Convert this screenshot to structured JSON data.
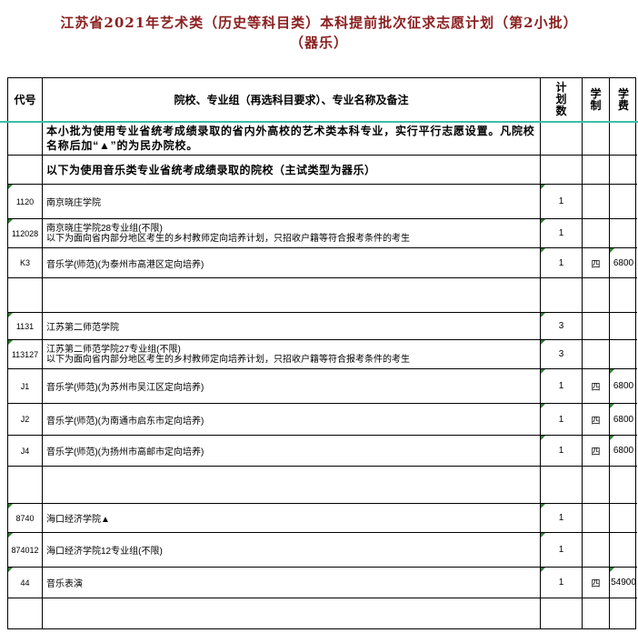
{
  "title": {
    "line1": "江苏省2021年艺术类（历史等科目类）本科提前批次征求志愿计划（第2小批）",
    "line2": "（器乐）"
  },
  "colors": {
    "title": "#8B2020",
    "freeze_line": "#3BBFA9",
    "error_triangle": "#2E7D32",
    "border": "#000000"
  },
  "table": {
    "header": {
      "code": "代号",
      "main": "院校、专业组（再选科目要求）、专业名称及备注",
      "plan": "计划数",
      "years": "学制",
      "fee": "学费"
    },
    "rows": [
      {
        "type": "note",
        "text": "本小批为使用专业省统考成绩录取的省内外高校的艺术类本科专业，实行平行志愿设置。凡院校名称后加“▲”的为民办院校。"
      },
      {
        "type": "subheader",
        "text": "以下为使用音乐类专业省统考成绩录取的院校（主试类型为器乐）"
      },
      {
        "type": "data",
        "code": "1120",
        "name": "南京晓庄学院",
        "plan": "1",
        "years": "",
        "fee": ""
      },
      {
        "type": "data",
        "code": "112028",
        "lines": [
          "南京晓庄学院28专业组(不限)",
          "以下为面向省内部分地区考生的乡村教师定向培养计划，只招收户籍等符合报考条件的考生"
        ],
        "plan": "1",
        "years": "",
        "fee": ""
      },
      {
        "type": "data",
        "code": "K3",
        "name": "音乐学(师范)(为泰州市高港区定向培养)",
        "plan": "1",
        "years": "四",
        "fee": "6800"
      },
      {
        "type": "empty"
      },
      {
        "type": "data",
        "code": "1131",
        "name": "江苏第二师范学院",
        "plan": "3",
        "years": "",
        "fee": ""
      },
      {
        "type": "data",
        "code": "113127",
        "lines": [
          "江苏第二师范学院27专业组(不限)",
          "以下为面向省内部分地区考生的乡村教师定向培养计划，只招收户籍等符合报考条件的考生"
        ],
        "plan": "3",
        "years": "",
        "fee": ""
      },
      {
        "type": "data",
        "code": "J1",
        "name": "音乐学(师范)(为苏州市吴江区定向培养)",
        "plan": "1",
        "years": "四",
        "fee": "6800"
      },
      {
        "type": "data",
        "code": "J2",
        "name": "音乐学(师范)(为南通市启东市定向培养)",
        "plan": "1",
        "years": "四",
        "fee": "6800"
      },
      {
        "type": "data",
        "code": "J4",
        "name": "音乐学(师范)(为扬州市高邮市定向培养)",
        "plan": "1",
        "years": "四",
        "fee": "6800"
      },
      {
        "type": "empty"
      },
      {
        "type": "data",
        "code": "8740",
        "name": "海口经济学院▲",
        "plan": "1",
        "years": "",
        "fee": ""
      },
      {
        "type": "data",
        "code": "874012",
        "name": "海口经济学院12专业组(不限)",
        "plan": "1",
        "years": "",
        "fee": ""
      },
      {
        "type": "data",
        "code": "44",
        "name": "音乐表演",
        "plan": "1",
        "years": "四",
        "fee": "54900"
      },
      {
        "type": "empty"
      }
    ]
  }
}
